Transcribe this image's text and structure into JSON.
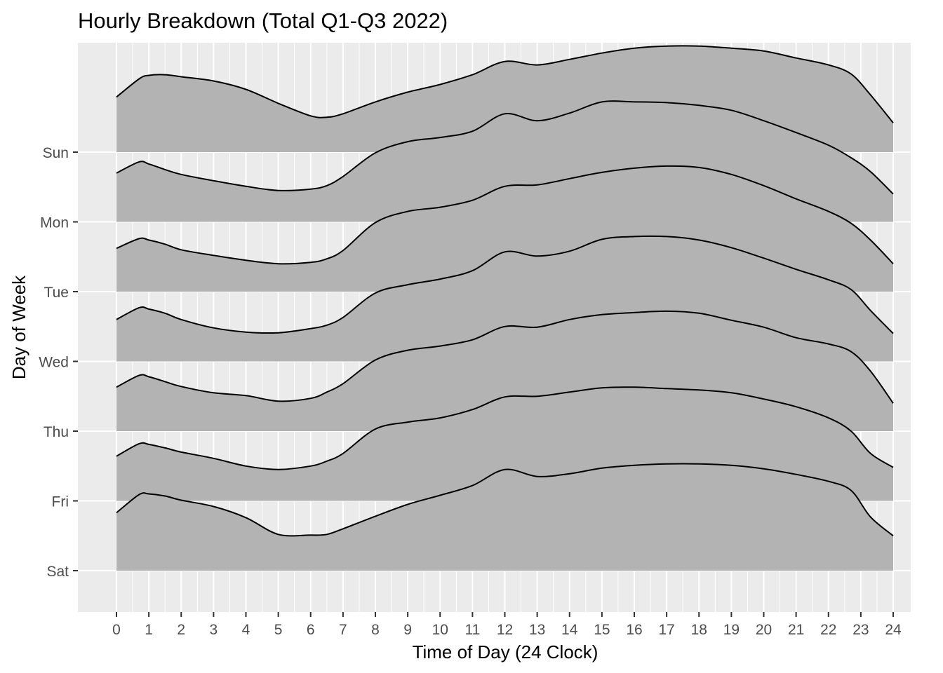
{
  "chart_data": {
    "type": "area",
    "subtype": "ridgeline-density",
    "title": "Hourly Breakdown (Total Q1-Q3 2022)",
    "xlabel": "Time of Day (24 Clock)",
    "ylabel": "Day of Week",
    "xlim": [
      0,
      24
    ],
    "x_ticks": [
      "0",
      "1",
      "2",
      "3",
      "4",
      "5",
      "6",
      "7",
      "8",
      "9",
      "10",
      "11",
      "12",
      "13",
      "14",
      "15",
      "16",
      "17",
      "18",
      "19",
      "20",
      "21",
      "22",
      "23",
      "24"
    ],
    "categories": [
      "Sun",
      "Mon",
      "Tue",
      "Wed",
      "Thu",
      "Fri",
      "Sat"
    ],
    "grid": true,
    "legend": "none",
    "colors": {
      "fill": "#b3b3b3",
      "line": "#000000",
      "panel": "#ebebeb",
      "grid": "#ffffff"
    },
    "x": [
      0,
      0.7,
      1,
      1.5,
      2,
      3,
      4,
      5,
      6,
      6.5,
      7,
      8,
      9,
      10,
      11,
      12,
      13,
      14,
      15,
      16,
      17,
      18,
      19,
      20,
      21,
      22,
      22.7,
      23.3,
      24
    ],
    "series": [
      {
        "day": "Sun",
        "values": [
          0.79,
          1.05,
          1.1,
          1.11,
          1.08,
          1.02,
          0.9,
          0.7,
          0.52,
          0.5,
          0.55,
          0.72,
          0.86,
          0.97,
          1.11,
          1.3,
          1.25,
          1.33,
          1.42,
          1.49,
          1.52,
          1.52,
          1.49,
          1.45,
          1.35,
          1.25,
          1.12,
          0.82,
          0.42
        ]
      },
      {
        "day": "Mon",
        "values": [
          0.7,
          0.86,
          0.83,
          0.75,
          0.68,
          0.59,
          0.51,
          0.45,
          0.47,
          0.52,
          0.65,
          0.99,
          1.15,
          1.21,
          1.3,
          1.55,
          1.45,
          1.56,
          1.72,
          1.72,
          1.71,
          1.67,
          1.6,
          1.45,
          1.28,
          1.1,
          0.92,
          0.72,
          0.4
        ]
      },
      {
        "day": "Tue",
        "values": [
          0.62,
          0.76,
          0.74,
          0.68,
          0.6,
          0.52,
          0.45,
          0.4,
          0.42,
          0.47,
          0.59,
          0.99,
          1.15,
          1.21,
          1.31,
          1.51,
          1.53,
          1.62,
          1.71,
          1.77,
          1.8,
          1.78,
          1.68,
          1.52,
          1.33,
          1.15,
          0.98,
          0.74,
          0.4
        ]
      },
      {
        "day": "Wed",
        "values": [
          0.6,
          0.77,
          0.75,
          0.69,
          0.6,
          0.48,
          0.42,
          0.41,
          0.47,
          0.52,
          0.63,
          0.98,
          1.1,
          1.18,
          1.3,
          1.57,
          1.51,
          1.58,
          1.75,
          1.79,
          1.79,
          1.74,
          1.63,
          1.48,
          1.32,
          1.17,
          1.03,
          0.73,
          0.4
        ]
      },
      {
        "day": "Thu",
        "values": [
          0.63,
          0.8,
          0.78,
          0.71,
          0.64,
          0.55,
          0.51,
          0.43,
          0.47,
          0.56,
          0.68,
          1.02,
          1.16,
          1.22,
          1.31,
          1.5,
          1.49,
          1.6,
          1.67,
          1.7,
          1.72,
          1.69,
          1.59,
          1.49,
          1.34,
          1.25,
          1.14,
          0.86,
          0.4
        ]
      },
      {
        "day": "Fri",
        "values": [
          0.64,
          0.82,
          0.81,
          0.76,
          0.7,
          0.61,
          0.5,
          0.45,
          0.5,
          0.57,
          0.68,
          1.03,
          1.13,
          1.19,
          1.31,
          1.49,
          1.5,
          1.56,
          1.62,
          1.63,
          1.61,
          1.59,
          1.55,
          1.46,
          1.35,
          1.19,
          1.0,
          0.68,
          0.48
        ]
      },
      {
        "day": "Sat",
        "values": [
          0.83,
          1.09,
          1.1,
          1.07,
          1.01,
          0.92,
          0.76,
          0.52,
          0.51,
          0.52,
          0.6,
          0.78,
          0.95,
          1.08,
          1.22,
          1.45,
          1.35,
          1.39,
          1.47,
          1.51,
          1.53,
          1.53,
          1.51,
          1.46,
          1.38,
          1.28,
          1.15,
          0.77,
          0.5
        ]
      }
    ]
  }
}
